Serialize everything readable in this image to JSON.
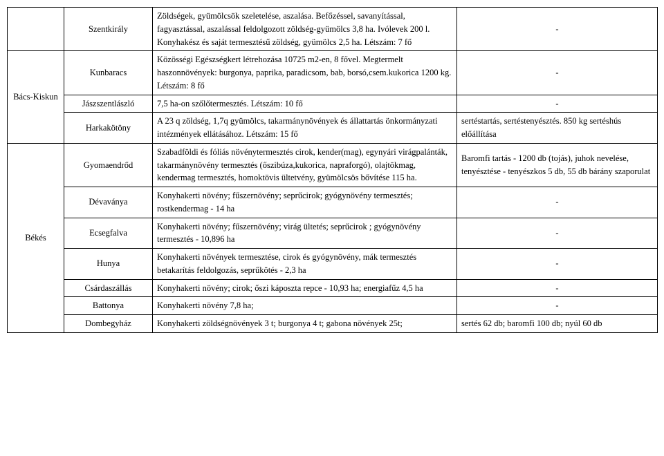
{
  "rows": [
    {
      "county": "",
      "place": "Szentkirály",
      "desc": "Zöldségek, gyümölcsök szeletelése, aszalása. Befőzéssel, savanyítással, fagyasztással, aszalással  feldolgozott zöldség-gyümölcs 3,8 ha. Ivólevek 200 l. Konyhakész és saját termesztésű zöldség, gyümölcs 2,5 ha. Létszám: 7 fő",
      "right": "-"
    },
    {
      "county": "Bács-Kiskun",
      "place": "Kunbaracs",
      "desc": "Közösségi Egészségkert létrehozása 10725 m2-en, 8 fővel. Megtermelt haszonnövények: burgonya, paprika, paradicsom, bab, borsó,csem.kukorica 1200 kg. Létszám: 8 fő",
      "right": "-"
    },
    {
      "place": "Jászszentlászló",
      "desc": "7,5 ha-on szőlőtermesztés. Létszám: 10 fő",
      "right": "-"
    },
    {
      "place": "Harkakötöny",
      "desc": "A 23 q zöldség, 1,7q gyümölcs, takarmánynövények és állattartás önkormányzati intézmények ellátásához. Létszám: 15 fő",
      "right": "sertéstartás, sertéstenyésztés. 850 kg sertéshús előállítása"
    },
    {
      "county": "Békés",
      "place": "Gyomaendrőd",
      "desc": "Szabadföldi és fóliás növénytermesztés  cirok, kender(mag), egynyári virágpalánták, takarmánynövény termesztés (őszibúza,kukorica, napraforgó), olajtökmag, kendermag termesztés, homoktövis ültetvény, gyümölcsös bővítése 115 ha.",
      "right": "Baromfi tartás - 1200 db (tojás), juhok nevelése, tenyésztése - tenyészkos 5 db, 55 db bárány szaporulat"
    },
    {
      "place": "Dévaványa",
      "desc": "Konyhakerti növény; fűszernövény; seprűcirok; gyógynövény termesztés; rostkendermag - 14 ha",
      "right": "-"
    },
    {
      "place": "Ecsegfalva",
      "desc": "Konyhakerti növény; fűszernövény; virág ültetés; seprűcirok ; gyógynövény termesztés - 10,896 ha",
      "right": "-"
    },
    {
      "place": "Hunya",
      "desc": "Konyhakerti növények termesztése, cirok és gyógynövény, mák termesztés betakarítás feldolgozás, seprűkötés - 2,3 ha",
      "right": "-"
    },
    {
      "place": "Csárdaszállás",
      "desc": "Konyhakerti növény; cirok; őszi káposzta repce - 10,93 ha; energiafűz 4,5 ha",
      "right": "-"
    },
    {
      "place": "Battonya",
      "desc": "Konyhakerti növény 7,8 ha;",
      "right": "-"
    },
    {
      "place": "Dombegyház",
      "desc": "Konyhakerti zöldségnövények 3 t; burgonya 4 t; gabona növények 25t;",
      "right": "sertés 62 db; baromfi 100 db; nyúl 60 db"
    }
  ]
}
